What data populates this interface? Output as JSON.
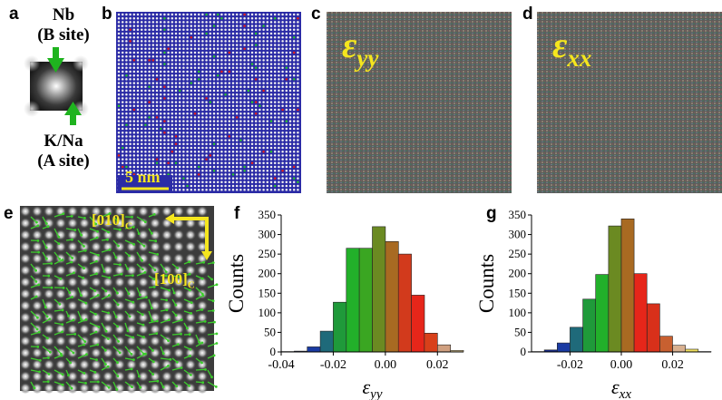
{
  "panels": {
    "a": {
      "label": "a",
      "top_line1": "Nb",
      "top_line2": "(B site)",
      "bottom_line1": "K/Na",
      "bottom_line2": "(A site)"
    },
    "b": {
      "label": "b",
      "scale_bar": "5 nm"
    },
    "c": {
      "label": "c",
      "symbol": "ε",
      "subscript": "yy"
    },
    "d": {
      "label": "d",
      "symbol": "ε",
      "subscript": "xx"
    },
    "e": {
      "label": "e",
      "axis_top": "[010]",
      "axis_top_sub": "C",
      "axis_right": "[100]",
      "axis_right_sub": "C"
    },
    "f": {
      "label": "f"
    },
    "g": {
      "label": "g"
    }
  },
  "colors": {
    "map_blue": "#2b2ba6",
    "atom_white": "#f2f2f2",
    "red": "#e8221a",
    "green": "#2ec82e",
    "yellow": "#f5e61e",
    "arrow_green": "#3ccd2c"
  },
  "chart_data": [
    {
      "panel": "f",
      "type": "bar",
      "ylabel": "Counts",
      "xlabel_symbol": "ε",
      "xlabel_sub": "yy",
      "ylim": [
        0,
        350
      ],
      "xlim": [
        -0.04,
        0.03
      ],
      "yticks": [
        "0",
        "50",
        "100",
        "150",
        "200",
        "250",
        "300",
        "350"
      ],
      "xticks": [
        "-0.04",
        "-0.02",
        "0.00",
        "0.02"
      ],
      "bin_width": 0.005,
      "bins": [
        {
          "center": -0.0375,
          "value": 1,
          "color": "#101060"
        },
        {
          "center": -0.0325,
          "value": 2,
          "color": "#152a8a"
        },
        {
          "center": -0.0275,
          "value": 13,
          "color": "#1a3ba3"
        },
        {
          "center": -0.0225,
          "value": 53,
          "color": "#1f6a7a"
        },
        {
          "center": -0.0175,
          "value": 127,
          "color": "#1f9a3a"
        },
        {
          "center": -0.0125,
          "value": 265,
          "color": "#22b02a"
        },
        {
          "center": -0.0075,
          "value": 265,
          "color": "#3aa622"
        },
        {
          "center": -0.0025,
          "value": 320,
          "color": "#6b8a22"
        },
        {
          "center": 0.0025,
          "value": 282,
          "color": "#a86a22"
        },
        {
          "center": 0.0075,
          "value": 250,
          "color": "#d23a1c"
        },
        {
          "center": 0.0125,
          "value": 145,
          "color": "#e6261a"
        },
        {
          "center": 0.0175,
          "value": 48,
          "color": "#d8401a"
        },
        {
          "center": 0.0225,
          "value": 18,
          "color": "#d0a080"
        },
        {
          "center": 0.0275,
          "value": 4,
          "color": "#e6d098"
        }
      ]
    },
    {
      "panel": "g",
      "type": "bar",
      "ylabel": "Counts",
      "xlabel_symbol": "ε",
      "xlabel_sub": "xx",
      "ylim": [
        0,
        350
      ],
      "xlim": [
        -0.035,
        0.035
      ],
      "yticks": [
        "0",
        "50",
        "100",
        "150",
        "200",
        "250",
        "300",
        "350"
      ],
      "xticks": [
        "-0.02",
        "0.00",
        "0.02"
      ],
      "bin_width": 0.005,
      "bins": [
        {
          "center": -0.0325,
          "value": 1,
          "color": "#101060"
        },
        {
          "center": -0.0275,
          "value": 5,
          "color": "#152a8a"
        },
        {
          "center": -0.0225,
          "value": 23,
          "color": "#1a3ba3"
        },
        {
          "center": -0.0175,
          "value": 63,
          "color": "#1f6a7a"
        },
        {
          "center": -0.0125,
          "value": 135,
          "color": "#1f9a3a"
        },
        {
          "center": -0.0075,
          "value": 198,
          "color": "#22b02a"
        },
        {
          "center": -0.0025,
          "value": 322,
          "color": "#6b8a22"
        },
        {
          "center": 0.0025,
          "value": 340,
          "color": "#a86a22"
        },
        {
          "center": 0.0075,
          "value": 200,
          "color": "#e6261a"
        },
        {
          "center": 0.0125,
          "value": 123,
          "color": "#d8301a"
        },
        {
          "center": 0.0175,
          "value": 40,
          "color": "#c86030"
        },
        {
          "center": 0.0225,
          "value": 17,
          "color": "#d8b090"
        },
        {
          "center": 0.0275,
          "value": 7,
          "color": "#f0e060"
        },
        {
          "center": 0.0325,
          "value": 1,
          "color": "#f5f0c0"
        }
      ]
    }
  ]
}
